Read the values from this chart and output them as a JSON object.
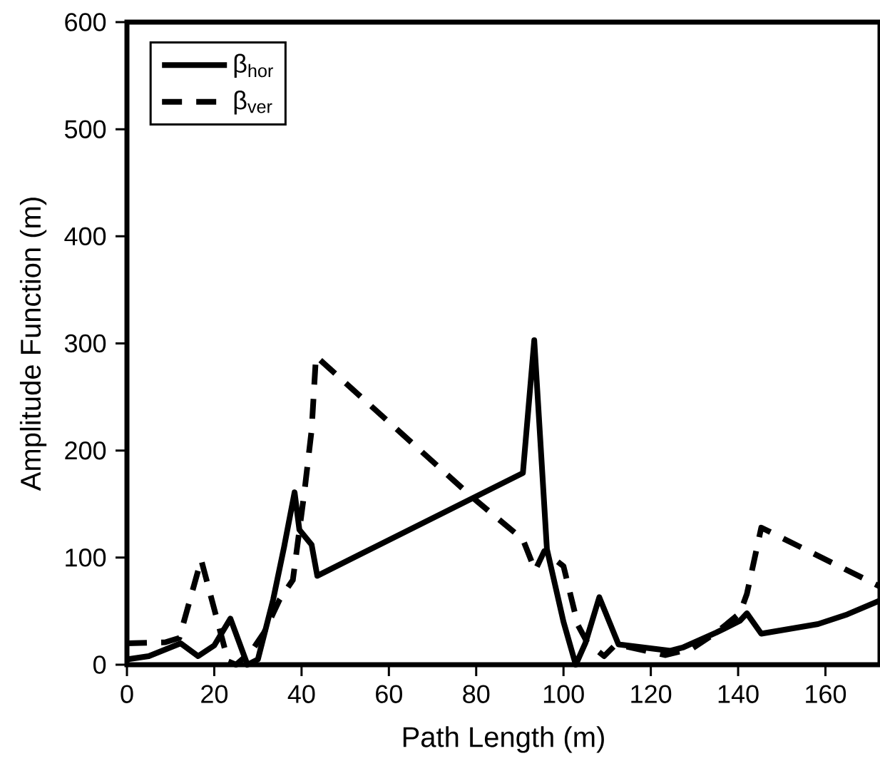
{
  "chart_data": {
    "type": "line",
    "xlabel": "Path Length (m)",
    "ylabel": "Amplitude Function (m)",
    "xlim": [
      0,
      172.5
    ],
    "ylim": [
      0,
      600
    ],
    "xticks": [
      0,
      20,
      40,
      60,
      80,
      100,
      120,
      140,
      160
    ],
    "yticks": [
      0,
      100,
      200,
      300,
      400,
      500,
      600
    ],
    "legend": "top left",
    "grid": false,
    "series": [
      {
        "name": "β$_{hor}$",
        "color": "#000000",
        "line_style": "solid",
        "x": [
          0,
          5,
          12.3,
          16.3,
          20,
          23.7,
          27.6,
          30,
          33.5,
          36,
          38.4,
          39.5,
          42.3,
          43.6,
          90.7,
          93.3,
          96.2,
          100,
          102.8,
          105,
          108.2,
          112.6,
          124.5,
          127.3,
          135,
          140.4,
          142,
          145.3,
          158.3,
          165,
          172.5
        ],
        "values": [
          5,
          8,
          20,
          8,
          18,
          43,
          0,
          5,
          61,
          110,
          161,
          126,
          112,
          83,
          179,
          303,
          108,
          40,
          0,
          20,
          63,
          19,
          13,
          16,
          30,
          41,
          48,
          29,
          38,
          47,
          60
        ]
      },
      {
        "name": "β$_{ver}$",
        "color": "#000000",
        "line_style": "dashed",
        "x": [
          0,
          8.8,
          12,
          17,
          23.2,
          25,
          28.6,
          31.4,
          35,
          38,
          39,
          40.7,
          42.3,
          43.3,
          79.2,
          90.7,
          93.5,
          95.6,
          100,
          103.3,
          105.4,
          109.3,
          112,
          123.4,
          129.4,
          135,
          140.4,
          142,
          145.3,
          172.5
        ],
        "values": [
          20,
          21,
          25,
          98,
          3,
          0,
          13,
          30,
          61,
          79,
          110,
          163,
          219,
          288,
          156,
          117,
          88,
          106,
          92,
          37,
          21,
          8,
          19,
          9,
          15,
          30,
          48,
          66,
          128,
          73
        ]
      }
    ]
  }
}
